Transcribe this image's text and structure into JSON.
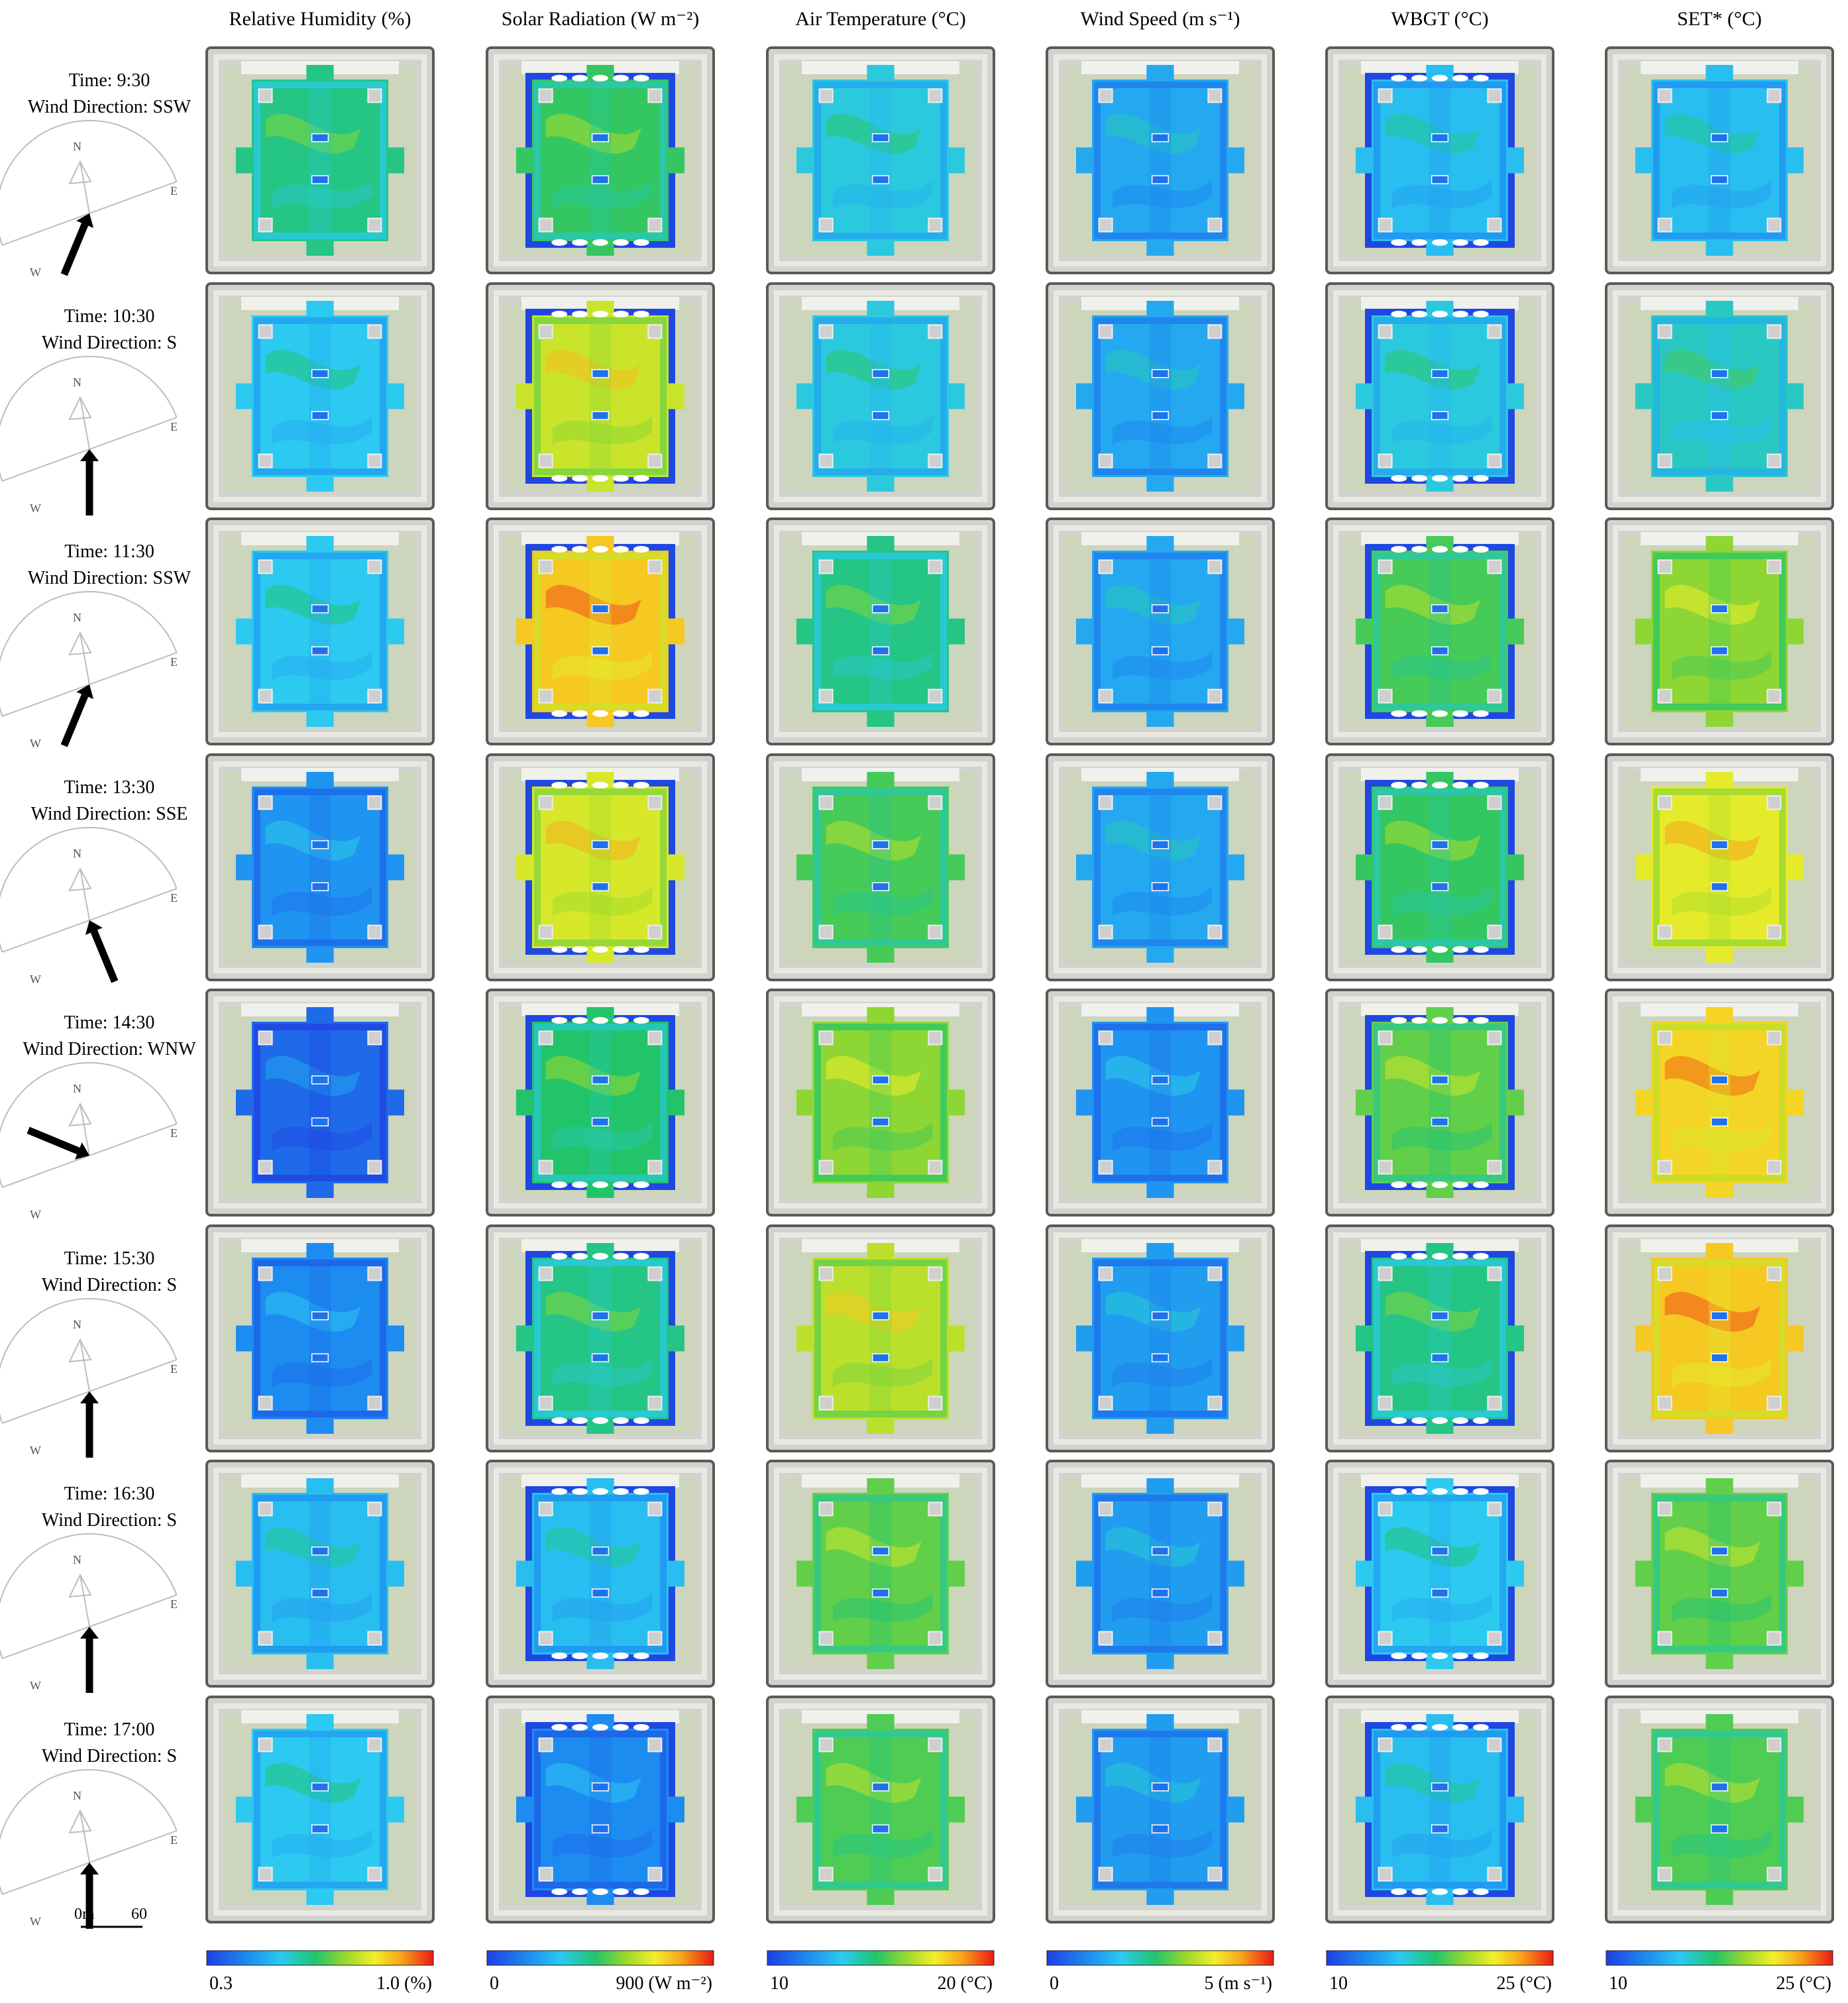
{
  "columns": [
    {
      "title": "Relative Humidity (%)",
      "scale_min": "0.3",
      "scale_max": "1.0 (%)"
    },
    {
      "title": "Solar Radiation (W m⁻²)",
      "scale_min": "0",
      "scale_max": "900 (W m⁻²)"
    },
    {
      "title": "Air Temperature (°C)",
      "scale_min": "10",
      "scale_max": "20 (°C)"
    },
    {
      "title": "Wind Speed (m s⁻¹)",
      "scale_min": "0",
      "scale_max": "5 (m s⁻¹)"
    },
    {
      "title": "WBGT (°C)",
      "scale_min": "10",
      "scale_max": "25 (°C)"
    },
    {
      "title": "SET* (°C)",
      "scale_min": "10",
      "scale_max": "25 (°C)"
    }
  ],
  "rows": [
    {
      "time": "Time: 9:30",
      "wind": "Wind Direction: SSW",
      "arrow_from_deg": 202.5,
      "levels": [
        0.45,
        0.5,
        0.35,
        0.25,
        0.3,
        0.3
      ]
    },
    {
      "time": "Time: 10:30",
      "wind": "Wind Direction: S",
      "arrow_from_deg": 180,
      "levels": [
        0.33,
        0.68,
        0.35,
        0.25,
        0.35,
        0.38
      ]
    },
    {
      "time": "Time: 11:30",
      "wind": "Wind Direction: SSW",
      "arrow_from_deg": 202.5,
      "levels": [
        0.33,
        0.8,
        0.45,
        0.25,
        0.52,
        0.6
      ]
    },
    {
      "time": "Time: 13:30",
      "wind": "Wind Direction: SSE",
      "arrow_from_deg": 157.5,
      "levels": [
        0.2,
        0.7,
        0.52,
        0.25,
        0.5,
        0.72
      ]
    },
    {
      "time": "Time: 14:30",
      "wind": "Wind Direction: WNW",
      "arrow_from_deg": 292.5,
      "levels": [
        0.1,
        0.48,
        0.6,
        0.2,
        0.55,
        0.78
      ]
    },
    {
      "time": "Time: 15:30",
      "wind": "Wind Direction: S",
      "arrow_from_deg": 180,
      "levels": [
        0.18,
        0.45,
        0.66,
        0.22,
        0.45,
        0.8
      ]
    },
    {
      "time": "Time: 16:30",
      "wind": "Wind Direction: S",
      "arrow_from_deg": 180,
      "levels": [
        0.3,
        0.3,
        0.55,
        0.22,
        0.33,
        0.55
      ]
    },
    {
      "time": "Time: 17:00",
      "wind": "Wind Direction: S",
      "arrow_from_deg": 180,
      "levels": [
        0.33,
        0.18,
        0.53,
        0.22,
        0.3,
        0.53
      ]
    }
  ],
  "compass_labels": [
    "N",
    "E",
    "W"
  ],
  "scale_bar": {
    "start": "0m",
    "end": "60"
  },
  "colors": {
    "frame": "#5a5a5a",
    "plaza": "#d3d3cd",
    "greenery": "#cdd5bd",
    "vents": "#ffffff"
  }
}
